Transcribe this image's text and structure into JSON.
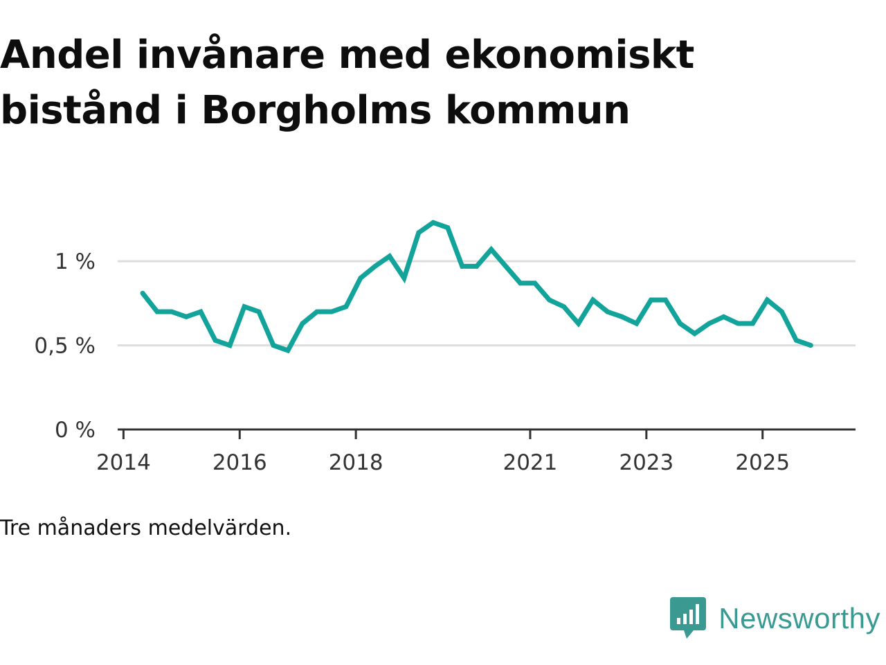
{
  "chart_data": {
    "type": "line",
    "title": "Andel invånare med ekonomiskt bistånd i Borgholms kommun",
    "caption": "Tre månaders medelvärden.",
    "xlabel": "",
    "ylabel": "",
    "x_ticks": [
      "2014",
      "2016",
      "2018",
      "2021",
      "2023",
      "2025"
    ],
    "y_ticks": [
      "0 %",
      "0,5 %",
      "1 %"
    ],
    "ylim": [
      0,
      1.4
    ],
    "series": [
      {
        "name": "Andel invånare med ekonomiskt bistånd",
        "color": "#12a39a",
        "x": [
          2014.33,
          2014.58,
          2014.83,
          2015.08,
          2015.33,
          2015.58,
          2015.83,
          2016.08,
          2016.33,
          2016.58,
          2016.83,
          2017.08,
          2017.33,
          2017.58,
          2017.83,
          2018.08,
          2018.33,
          2018.58,
          2018.83,
          2019.08,
          2019.33,
          2019.58,
          2019.83,
          2020.08,
          2020.33,
          2020.58,
          2020.83,
          2021.08,
          2021.33,
          2021.58,
          2021.83,
          2022.08,
          2022.33,
          2022.58,
          2022.83,
          2023.08,
          2023.33,
          2023.58,
          2023.83,
          2024.08,
          2024.33,
          2024.58,
          2024.83,
          2025.08,
          2025.33,
          2025.58,
          2025.83
        ],
        "values": [
          0.81,
          0.7,
          0.7,
          0.67,
          0.7,
          0.53,
          0.5,
          0.73,
          0.7,
          0.5,
          0.47,
          0.63,
          0.7,
          0.7,
          0.73,
          0.9,
          0.97,
          1.03,
          0.9,
          1.17,
          1.23,
          1.2,
          0.97,
          0.97,
          1.07,
          0.97,
          0.87,
          0.87,
          0.77,
          0.73,
          0.63,
          0.77,
          0.7,
          0.67,
          0.63,
          0.77,
          0.77,
          0.63,
          0.57,
          0.63,
          0.67,
          0.63,
          0.63,
          0.77,
          0.7,
          0.53,
          0.5
        ]
      }
    ],
    "grid": true,
    "legend": "none"
  },
  "brand": {
    "name": "Newsworthy",
    "color": "#3a9a92"
  }
}
